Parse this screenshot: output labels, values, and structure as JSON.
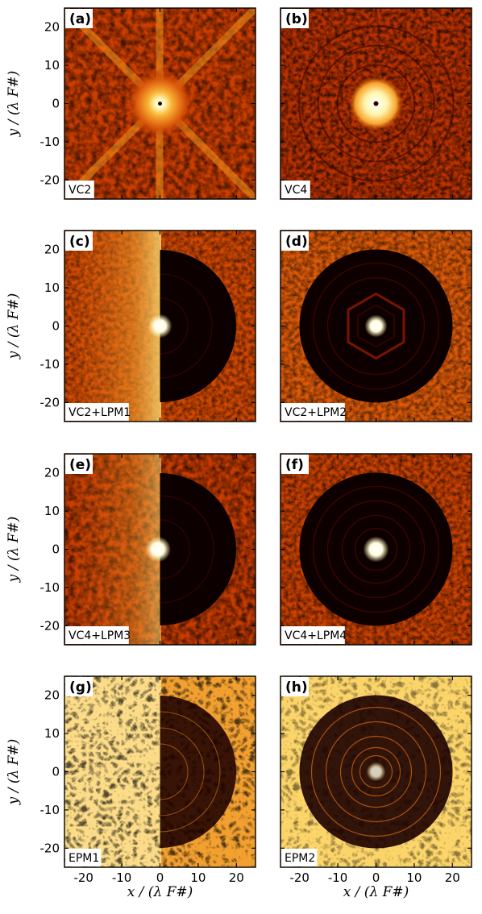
{
  "figure": {
    "axes": {
      "xlabel": "x / (λ F#)",
      "ylabel": "y / (λ F#)",
      "xlim": [
        -25,
        25
      ],
      "ylim": [
        -25,
        25
      ],
      "xticks": [
        -20,
        -10,
        0,
        10,
        20
      ],
      "yticks": [
        20,
        10,
        0,
        -10,
        -20
      ]
    },
    "colormap": [
      "#000000",
      "#3a0600",
      "#8a1800",
      "#cc3a00",
      "#ee7a14",
      "#f9bd3c",
      "#fff5a8",
      "#ffffff"
    ],
    "panels": [
      {
        "letter": "(a)",
        "label": "VC2"
      },
      {
        "letter": "(b)",
        "label": "VC4"
      },
      {
        "letter": "(c)",
        "label": "VC2+LPM1"
      },
      {
        "letter": "(d)",
        "label": "VC2+LPM2"
      },
      {
        "letter": "(e)",
        "label": "VC4+LPM3"
      },
      {
        "letter": "(f)",
        "label": "VC4+LPM4"
      },
      {
        "letter": "(g)",
        "label": "EPM1"
      },
      {
        "letter": "(h)",
        "label": "EPM2"
      }
    ]
  }
}
